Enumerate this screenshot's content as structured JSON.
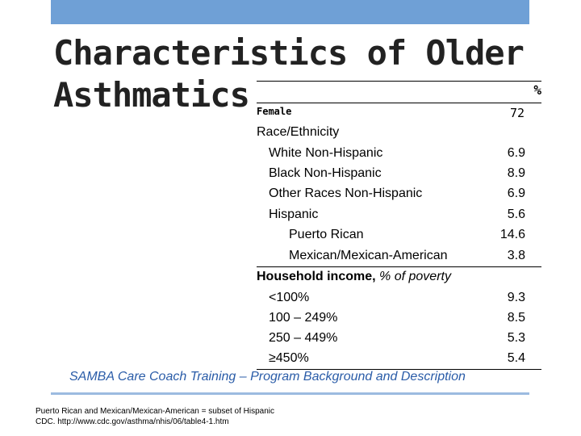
{
  "title_line1": "Characteristics of Older",
  "title_line2": "Asthmatics",
  "table": {
    "pct_header": "%",
    "female_label": "Female",
    "female_value": "72",
    "race_header": "Race/Ethnicity",
    "race_rows": [
      {
        "label": "White Non-Hispanic",
        "value": "6.9"
      },
      {
        "label": "Black Non-Hispanic",
        "value": "8.9"
      },
      {
        "label": "Other Races Non-Hispanic",
        "value": "6.9"
      },
      {
        "label": "Hispanic",
        "value": "5.6"
      },
      {
        "label": "Puerto Rican",
        "value": "14.6"
      },
      {
        "label": "Mexican/Mexican-American",
        "value": "3.8"
      }
    ],
    "income_header": "Household income,",
    "income_header_italic": "% of poverty",
    "income_rows": [
      {
        "label": "<100%",
        "value": "9.3"
      },
      {
        "label": "100 – 249%",
        "value": "8.5"
      },
      {
        "label": "250 – 449%",
        "value": "5.3"
      },
      {
        "label": "≥450%",
        "value": "5.4"
      }
    ]
  },
  "footer": "SAMBA Care Coach Training – Program Background and Description",
  "notes": {
    "line1": "Puerto Rican and Mexican/Mexican-American = subset of Hispanic",
    "line2": "CDC. http://www.cdc.gov/asthma/nhis/06/table4-1.htm"
  },
  "colors": {
    "top_bar": "#6fa0d6",
    "footer_text": "#2a5ca8",
    "footer_rule": "#9cbbe0"
  }
}
